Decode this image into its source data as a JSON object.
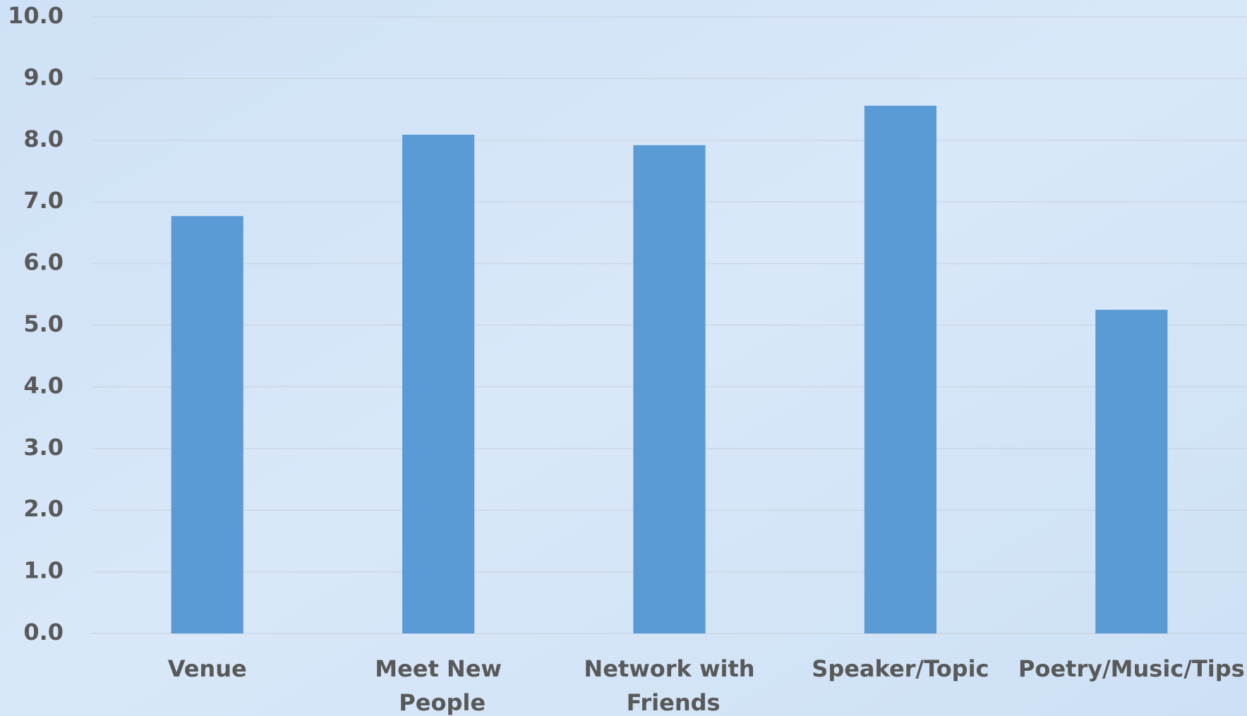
{
  "chart_data": {
    "type": "bar",
    "categories": [
      "Venue",
      "Meet New People",
      "Network with Friends",
      "Speaker/Topic",
      "Poetry/Music/Tips"
    ],
    "values": [
      6.77,
      8.09,
      7.92,
      8.56,
      5.25
    ],
    "color": "#5b9bd5",
    "ylim": [
      0,
      10
    ],
    "yticks": [
      {
        "value": 0,
        "label": "0.0"
      },
      {
        "value": 1,
        "label": "1.0"
      },
      {
        "value": 2,
        "label": "2.0"
      },
      {
        "value": 3,
        "label": "3.0"
      },
      {
        "value": 4,
        "label": "4.0"
      },
      {
        "value": 5,
        "label": "5.0"
      },
      {
        "value": 6,
        "label": "6.0"
      },
      {
        "value": 7,
        "label": "7.0"
      },
      {
        "value": 8,
        "label": "8.0"
      },
      {
        "value": 9,
        "label": "9.0"
      },
      {
        "value": 10,
        "label": "10.0"
      }
    ],
    "grid": true
  }
}
